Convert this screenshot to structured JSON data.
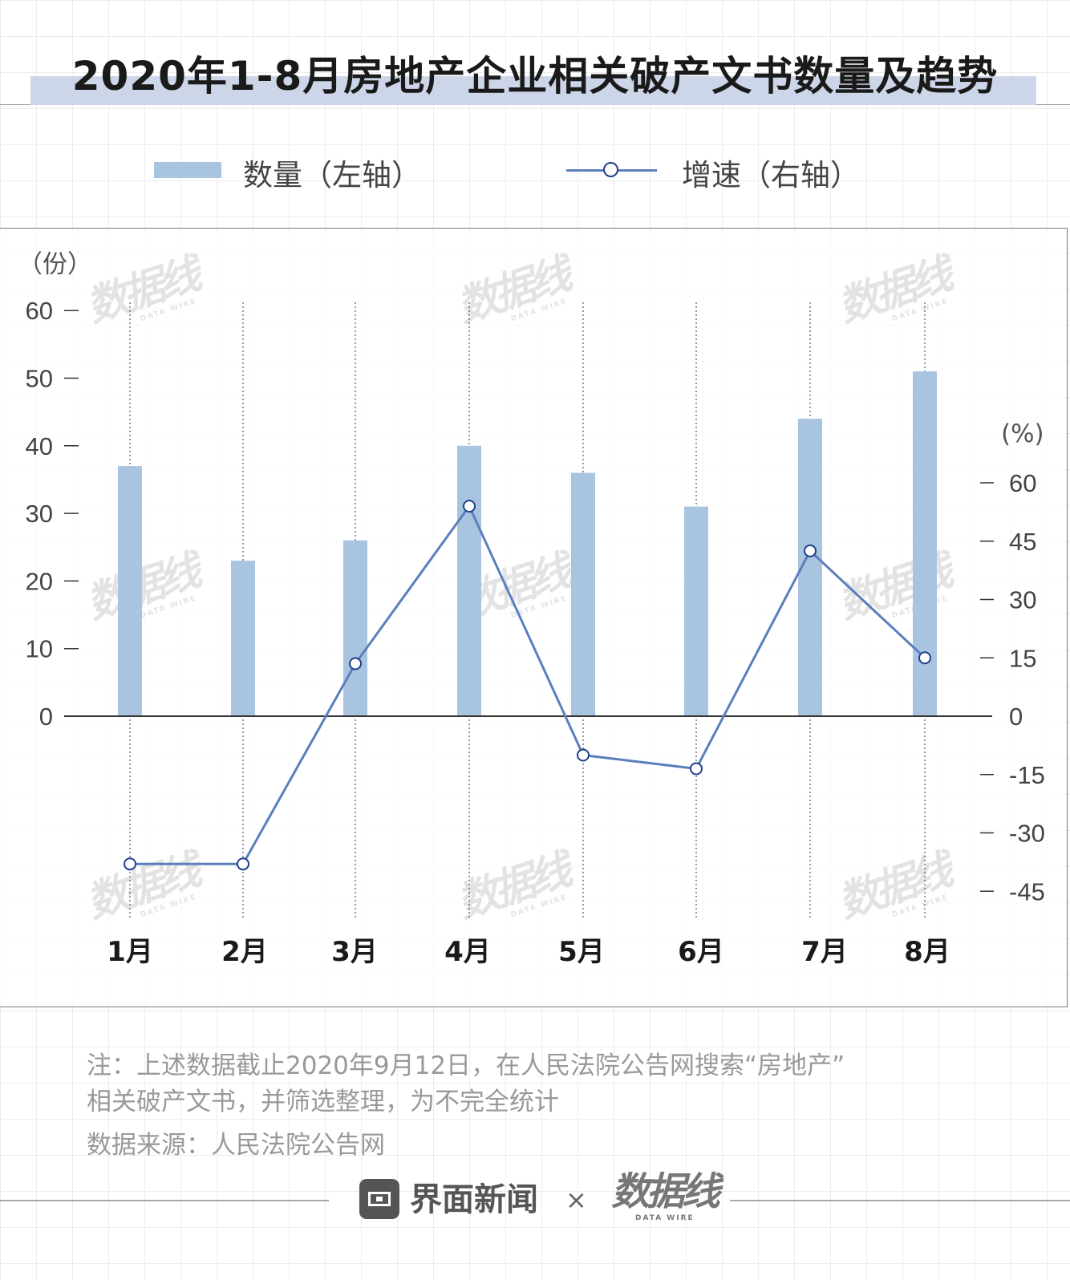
{
  "title": "2020年1-8月房地产企业相关破产文书数量及趋势",
  "legend": {
    "bar_label": "数量（左轴）",
    "line_label": "增速（右轴）"
  },
  "colors": {
    "bar": "#a9c4e0",
    "line": "#5b7fbc",
    "marker_stroke": "#1f3f8a",
    "title_band": "#cdd5e8"
  },
  "chart_data": {
    "type": "bar",
    "categories": [
      "1月",
      "2月",
      "3月",
      "4月",
      "5月",
      "6月",
      "7月",
      "8月"
    ],
    "series": [
      {
        "name": "数量（左轴）",
        "type": "bar",
        "axis": "left",
        "values": [
          37,
          23,
          26,
          40,
          36,
          31,
          44,
          51
        ]
      },
      {
        "name": "增速（右轴）",
        "type": "line",
        "axis": "right",
        "values": [
          -38,
          -38,
          13.5,
          54,
          -10,
          -13.5,
          42.5,
          15
        ]
      }
    ],
    "y_left": {
      "unit_label": "（份）",
      "range": [
        0,
        60
      ],
      "ticks": [
        "60",
        "50",
        "40",
        "30",
        "20",
        "10",
        "0"
      ]
    },
    "y_right": {
      "unit_label": "(%)",
      "ticks": [
        "60",
        "45",
        "30",
        "15",
        "0",
        "-15",
        "-30",
        "-45"
      ]
    },
    "grid": "vertical-dotted",
    "legend_position": "top"
  },
  "notes": {
    "line1": "注：上述数据截止2020年9月12日，在人民法院公告网搜索“房地产”",
    "line2": "相关破产文书，并筛选整理，为不完全统计",
    "source": "数据来源：人民法院公告网"
  },
  "footer": {
    "brand": "界面新闻",
    "separator": "×",
    "logo_text": "数据线",
    "logo_sub": "DATA WIRE"
  }
}
